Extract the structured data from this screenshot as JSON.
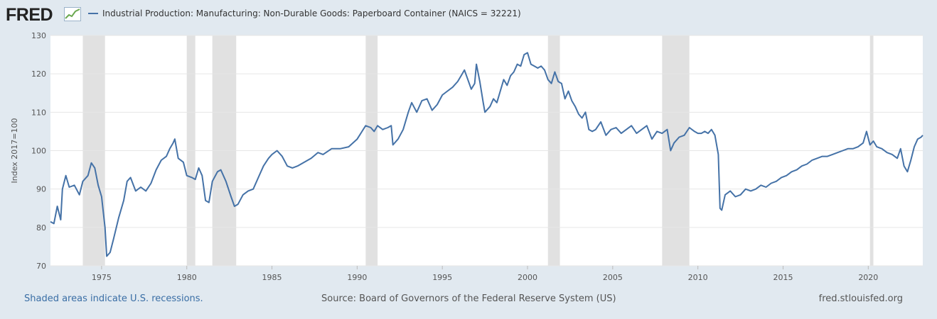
{
  "header": {
    "logo_text": "FRED",
    "logo_icon": "line-graph-icon",
    "legend_label": "Industrial Production: Manufacturing: Non-Durable Goods: Paperboard Container (NAICS = 32221)"
  },
  "footer": {
    "recession_note": "Shaded areas indicate U.S. recessions.",
    "source": "Source: Board of Governors of the Federal Reserve System (US)",
    "site": "fred.stlouisfed.org"
  },
  "colors": {
    "background": "#e1e9f0",
    "plot_background": "#ffffff",
    "series": "#4572a7",
    "recession_shade": "#e1e1e1",
    "grid": "#e6e6e6"
  },
  "chart_data": {
    "type": "line",
    "ylabel": "Index 2017=100",
    "xlabel": "",
    "ylim": [
      70,
      130
    ],
    "xlim": [
      1972.0,
      2023.2
    ],
    "grid": true,
    "y_ticks": [
      70,
      80,
      90,
      100,
      110,
      120,
      130
    ],
    "x_ticks": [
      1975,
      1980,
      1985,
      1990,
      1995,
      2000,
      2005,
      2010,
      2015,
      2020
    ],
    "recessions": [
      [
        1973.9,
        1975.2
      ],
      [
        1980.0,
        1980.5
      ],
      [
        1981.5,
        1982.9
      ],
      [
        1990.5,
        1991.2
      ],
      [
        2001.2,
        2001.9
      ],
      [
        2007.9,
        2009.5
      ],
      [
        2020.1,
        2020.3
      ]
    ],
    "series": [
      {
        "name": "Industrial Production: Manufacturing: Non-Durable Goods: Paperboard Container (NAICS = 32221)",
        "points": [
          [
            1972.0,
            81.5
          ],
          [
            1972.2,
            81.0
          ],
          [
            1972.4,
            85.5
          ],
          [
            1972.6,
            82.0
          ],
          [
            1972.7,
            90.0
          ],
          [
            1972.9,
            93.5
          ],
          [
            1973.1,
            90.5
          ],
          [
            1973.4,
            91.0
          ],
          [
            1973.7,
            88.5
          ],
          [
            1973.9,
            92.0
          ],
          [
            1974.2,
            93.5
          ],
          [
            1974.4,
            96.8
          ],
          [
            1974.6,
            95.5
          ],
          [
            1974.8,
            91.0
          ],
          [
            1975.0,
            88.0
          ],
          [
            1975.2,
            80.0
          ],
          [
            1975.3,
            72.5
          ],
          [
            1975.5,
            73.5
          ],
          [
            1975.7,
            77.0
          ],
          [
            1976.0,
            82.5
          ],
          [
            1976.3,
            87.0
          ],
          [
            1976.5,
            92.0
          ],
          [
            1976.7,
            93.0
          ],
          [
            1977.0,
            89.5
          ],
          [
            1977.3,
            90.5
          ],
          [
            1977.6,
            89.5
          ],
          [
            1977.9,
            91.5
          ],
          [
            1978.2,
            95.0
          ],
          [
            1978.5,
            97.5
          ],
          [
            1978.8,
            98.5
          ],
          [
            1979.0,
            100.5
          ],
          [
            1979.2,
            102.0
          ],
          [
            1979.3,
            103.0
          ],
          [
            1979.5,
            98.0
          ],
          [
            1979.8,
            97.0
          ],
          [
            1980.0,
            93.5
          ],
          [
            1980.3,
            93.0
          ],
          [
            1980.5,
            92.5
          ],
          [
            1980.7,
            95.5
          ],
          [
            1980.9,
            93.5
          ],
          [
            1981.1,
            87.0
          ],
          [
            1981.3,
            86.5
          ],
          [
            1981.5,
            92.0
          ],
          [
            1981.8,
            94.5
          ],
          [
            1982.0,
            95.0
          ],
          [
            1982.3,
            92.0
          ],
          [
            1982.6,
            88.0
          ],
          [
            1982.8,
            85.5
          ],
          [
            1983.0,
            86.0
          ],
          [
            1983.3,
            88.5
          ],
          [
            1983.6,
            89.5
          ],
          [
            1983.9,
            90.0
          ],
          [
            1984.2,
            93.0
          ],
          [
            1984.5,
            96.0
          ],
          [
            1984.8,
            98.0
          ],
          [
            1985.0,
            99.0
          ],
          [
            1985.3,
            100.0
          ],
          [
            1985.6,
            98.5
          ],
          [
            1985.9,
            96.0
          ],
          [
            1986.2,
            95.5
          ],
          [
            1986.5,
            96.0
          ],
          [
            1986.9,
            97.0
          ],
          [
            1987.3,
            98.0
          ],
          [
            1987.7,
            99.5
          ],
          [
            1988.0,
            99.0
          ],
          [
            1988.5,
            100.5
          ],
          [
            1989.0,
            100.5
          ],
          [
            1989.5,
            101.0
          ],
          [
            1990.0,
            103.0
          ],
          [
            1990.5,
            106.5
          ],
          [
            1990.8,
            106.0
          ],
          [
            1991.0,
            105.0
          ],
          [
            1991.2,
            106.5
          ],
          [
            1991.5,
            105.5
          ],
          [
            1991.8,
            106.0
          ],
          [
            1992.0,
            106.5
          ],
          [
            1992.1,
            101.5
          ],
          [
            1992.4,
            103.0
          ],
          [
            1992.7,
            105.5
          ],
          [
            1993.0,
            110.0
          ],
          [
            1993.2,
            112.5
          ],
          [
            1993.5,
            110.0
          ],
          [
            1993.8,
            113.0
          ],
          [
            1994.1,
            113.5
          ],
          [
            1994.4,
            110.5
          ],
          [
            1994.7,
            112.0
          ],
          [
            1995.0,
            114.5
          ],
          [
            1995.3,
            115.5
          ],
          [
            1995.6,
            116.5
          ],
          [
            1995.9,
            118.0
          ],
          [
            1996.1,
            119.5
          ],
          [
            1996.3,
            121.0
          ],
          [
            1996.5,
            118.5
          ],
          [
            1996.7,
            116.0
          ],
          [
            1996.9,
            117.5
          ],
          [
            1997.0,
            122.5
          ],
          [
            1997.2,
            118.0
          ],
          [
            1997.4,
            112.5
          ],
          [
            1997.5,
            110.0
          ],
          [
            1997.8,
            111.5
          ],
          [
            1998.0,
            113.5
          ],
          [
            1998.2,
            112.5
          ],
          [
            1998.4,
            115.5
          ],
          [
            1998.6,
            118.5
          ],
          [
            1998.8,
            117.0
          ],
          [
            1999.0,
            119.5
          ],
          [
            1999.2,
            120.5
          ],
          [
            1999.4,
            122.5
          ],
          [
            1999.6,
            122.0
          ],
          [
            1999.8,
            125.0
          ],
          [
            2000.0,
            125.5
          ],
          [
            2000.2,
            122.5
          ],
          [
            2000.4,
            122.0
          ],
          [
            2000.6,
            121.5
          ],
          [
            2000.8,
            122.0
          ],
          [
            2001.0,
            121.0
          ],
          [
            2001.2,
            118.5
          ],
          [
            2001.4,
            117.5
          ],
          [
            2001.6,
            120.5
          ],
          [
            2001.8,
            118.0
          ],
          [
            2002.0,
            117.5
          ],
          [
            2002.2,
            113.5
          ],
          [
            2002.4,
            115.5
          ],
          [
            2002.6,
            113.0
          ],
          [
            2002.8,
            111.5
          ],
          [
            2003.0,
            109.5
          ],
          [
            2003.2,
            108.5
          ],
          [
            2003.4,
            110.0
          ],
          [
            2003.6,
            105.5
          ],
          [
            2003.8,
            105.0
          ],
          [
            2004.0,
            105.5
          ],
          [
            2004.3,
            107.5
          ],
          [
            2004.6,
            104.0
          ],
          [
            2004.9,
            105.5
          ],
          [
            2005.2,
            106.0
          ],
          [
            2005.5,
            104.5
          ],
          [
            2005.8,
            105.5
          ],
          [
            2006.1,
            106.5
          ],
          [
            2006.4,
            104.5
          ],
          [
            2006.7,
            105.5
          ],
          [
            2007.0,
            106.5
          ],
          [
            2007.3,
            103.0
          ],
          [
            2007.6,
            105.0
          ],
          [
            2007.9,
            104.5
          ],
          [
            2008.2,
            105.5
          ],
          [
            2008.4,
            100.0
          ],
          [
            2008.6,
            102.0
          ],
          [
            2008.9,
            103.5
          ],
          [
            2009.2,
            104.0
          ],
          [
            2009.5,
            106.0
          ],
          [
            2009.8,
            105.0
          ],
          [
            2010.0,
            104.5
          ],
          [
            2010.2,
            104.5
          ],
          [
            2010.4,
            105.0
          ],
          [
            2010.6,
            104.5
          ],
          [
            2010.8,
            105.5
          ],
          [
            2011.0,
            104.0
          ],
          [
            2011.2,
            99.0
          ],
          [
            2011.3,
            85.0
          ],
          [
            2011.4,
            84.5
          ],
          [
            2011.6,
            88.5
          ],
          [
            2011.9,
            89.5
          ],
          [
            2012.2,
            88.0
          ],
          [
            2012.5,
            88.5
          ],
          [
            2012.8,
            90.0
          ],
          [
            2013.1,
            89.5
          ],
          [
            2013.4,
            90.0
          ],
          [
            2013.7,
            91.0
          ],
          [
            2014.0,
            90.5
          ],
          [
            2014.3,
            91.5
          ],
          [
            2014.6,
            92.0
          ],
          [
            2014.9,
            93.0
          ],
          [
            2015.2,
            93.5
          ],
          [
            2015.5,
            94.5
          ],
          [
            2015.8,
            95.0
          ],
          [
            2016.1,
            96.0
          ],
          [
            2016.4,
            96.5
          ],
          [
            2016.7,
            97.5
          ],
          [
            2017.0,
            98.0
          ],
          [
            2017.3,
            98.5
          ],
          [
            2017.6,
            98.5
          ],
          [
            2017.9,
            99.0
          ],
          [
            2018.2,
            99.5
          ],
          [
            2018.5,
            100.0
          ],
          [
            2018.8,
            100.5
          ],
          [
            2019.1,
            100.5
          ],
          [
            2019.4,
            101.0
          ],
          [
            2019.7,
            102.0
          ],
          [
            2019.9,
            105.0
          ],
          [
            2020.1,
            101.5
          ],
          [
            2020.3,
            102.5
          ],
          [
            2020.5,
            101.0
          ],
          [
            2020.8,
            100.5
          ],
          [
            2021.1,
            99.5
          ],
          [
            2021.4,
            99.0
          ],
          [
            2021.7,
            98.0
          ],
          [
            2021.9,
            100.5
          ],
          [
            2022.1,
            96.0
          ],
          [
            2022.3,
            94.5
          ],
          [
            2022.5,
            97.5
          ],
          [
            2022.7,
            101.0
          ],
          [
            2022.9,
            103.0
          ],
          [
            2023.1,
            103.5
          ],
          [
            2023.2,
            104.0
          ]
        ]
      }
    ]
  }
}
